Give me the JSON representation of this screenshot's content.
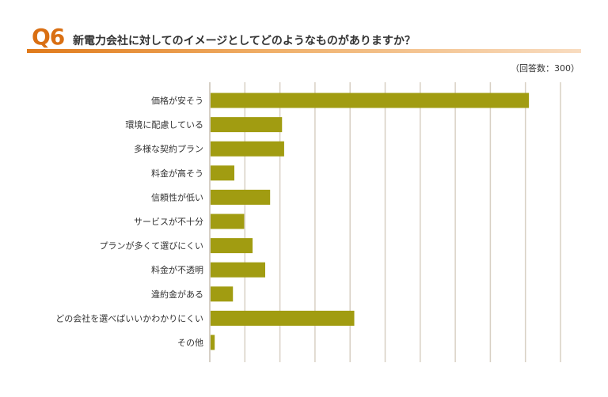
{
  "header": {
    "q_number": "Q6",
    "question": "新電力会社に対してのイメージとしてどのようなものがありますか？",
    "respondents": "（回答数：300）"
  },
  "colors": {
    "accent": "#d96f13",
    "bar": "#a19c11",
    "grid": "#d8d0c4"
  },
  "chart_data": {
    "type": "bar",
    "orientation": "horizontal",
    "categories": [
      "価格が安そう",
      "環境に配慮している",
      "多様な契約プラン",
      "料金が高そう",
      "信頼性が低い",
      "サービスが不十分",
      "プランが多くて選びにくい",
      "料金が不透明",
      "違約金がある",
      "どの会社を選べばいいかわかりにくい",
      "その他"
    ],
    "values": [
      45.5,
      10.3,
      10.6,
      3.5,
      8.6,
      4.9,
      6.1,
      7.9,
      3.3,
      20.6,
      0.7
    ],
    "xlim": [
      0,
      50
    ],
    "grid": true,
    "legend": "none"
  }
}
